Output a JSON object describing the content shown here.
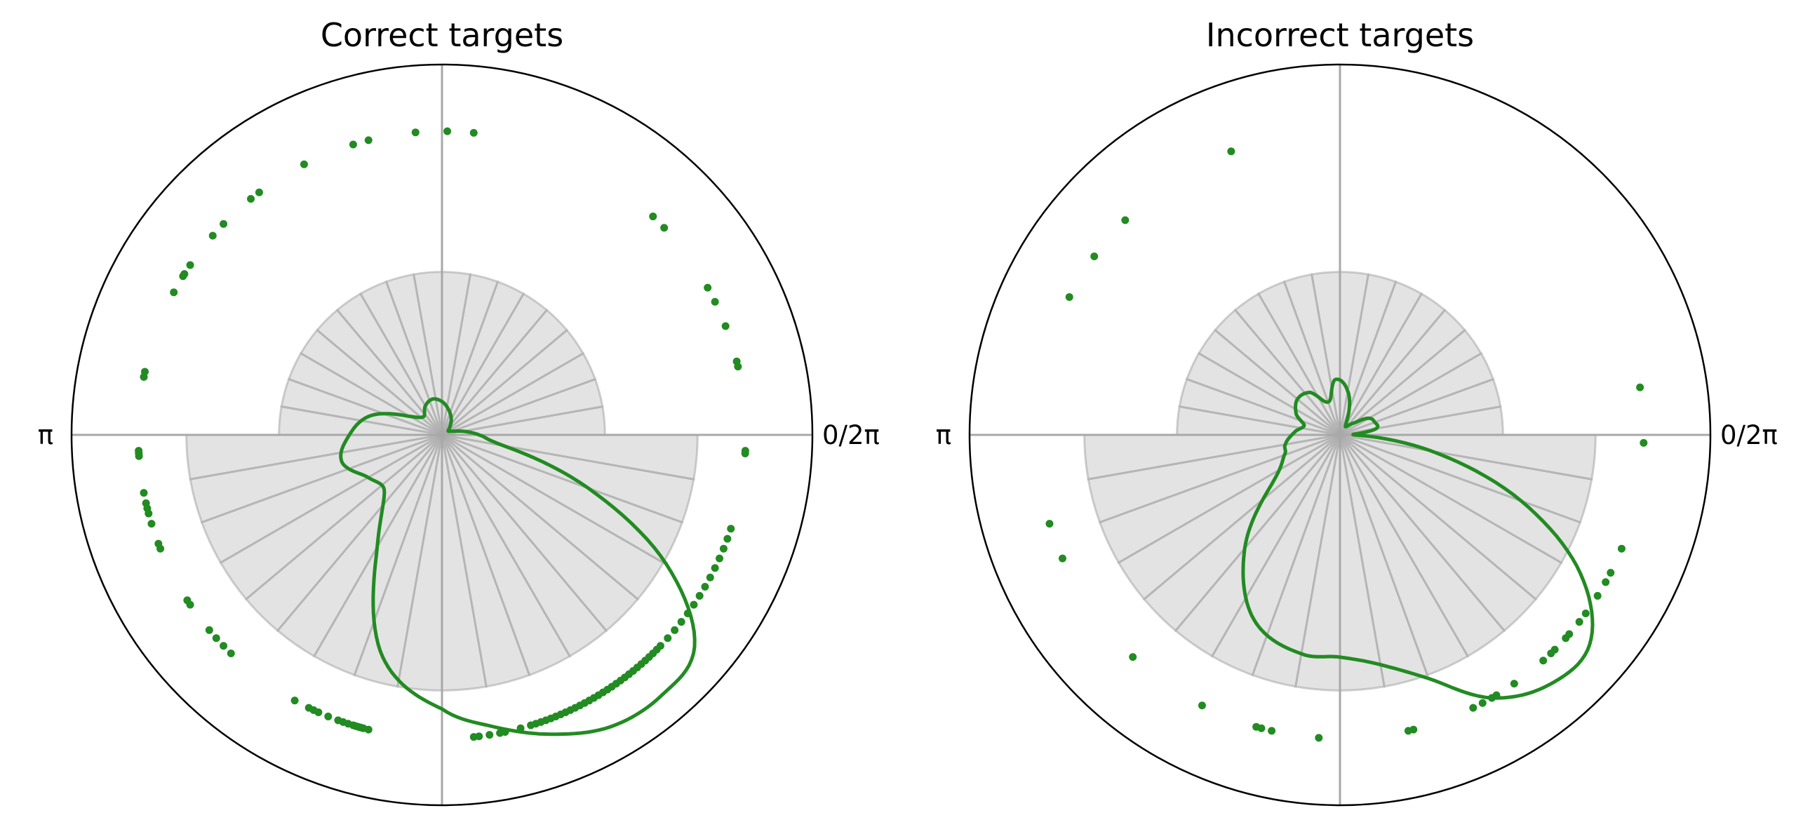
{
  "chart_data": [
    {
      "type": "polar",
      "title": "Correct targets",
      "tick_labels": {
        "zero": "0/2π",
        "pi": "π"
      },
      "histogram": {
        "bins": 36,
        "upper_half_value": 0.44,
        "lower_half_value": 0.69,
        "rmax": 1.0
      },
      "scatter": {
        "radius": 0.82,
        "angles_deg": [
          -3,
          -3.5,
          13,
          14,
          21,
          26,
          29,
          43,
          46,
          84,
          89,
          95,
          104,
          107,
          117,
          127,
          129,
          136,
          139,
          146,
          148,
          148.5,
          152,
          168,
          169,
          183,
          183.5,
          184,
          191,
          193,
          194,
          195,
          197,
          201,
          202,
          213,
          214,
          220,
          222,
          224,
          226,
          241,
          244,
          245,
          246,
          248,
          250,
          251,
          252,
          253,
          253.5,
          254,
          254.5,
          255,
          256,
          276,
          277,
          279,
          281,
          282,
          285,
          287,
          288,
          289,
          290,
          291,
          292,
          293,
          294,
          295,
          296,
          297,
          298,
          299,
          300,
          301,
          302,
          303,
          304,
          305,
          306,
          307,
          308,
          309,
          310,
          311,
          312,
          313,
          314,
          315,
          316,
          318,
          320,
          322,
          324,
          326,
          328,
          330,
          332,
          334,
          336,
          338,
          340,
          342
        ]
      },
      "kde_curve": {
        "color": "#228b22",
        "angles_deg": [
          0,
          15,
          30,
          45,
          60,
          75,
          90,
          105,
          120,
          135,
          150,
          165,
          180,
          195,
          210,
          225,
          240,
          255,
          270,
          280,
          290,
          300,
          310,
          320,
          330,
          340,
          350,
          360
        ],
        "values": [
          0.1,
          0.04,
          0.02,
          0.03,
          0.05,
          0.07,
          0.09,
          0.1,
          0.09,
          0.07,
          0.1,
          0.2,
          0.25,
          0.28,
          0.23,
          0.22,
          0.35,
          0.62,
          0.74,
          0.8,
          0.86,
          0.91,
          0.92,
          0.89,
          0.7,
          0.42,
          0.17,
          0.1
        ]
      }
    },
    {
      "type": "polar",
      "title": "Incorrect targets",
      "tick_labels": {
        "zero": "0/2π",
        "pi": "π"
      },
      "histogram": {
        "bins": 36,
        "upper_half_value": 0.44,
        "lower_half_value": 0.69,
        "rmax": 1.0
      },
      "scatter": {
        "radius": 0.82,
        "angles_deg": [
          -1.5,
          9,
          111,
          135,
          144,
          153,
          197,
          204,
          227,
          243,
          254,
          255,
          257,
          266,
          283,
          284,
          296,
          298,
          300,
          301,
          305,
          312,
          314,
          315,
          318,
          319,
          322,
          324,
          328,
          331,
          333,
          338
        ]
      },
      "kde_curve": {
        "color": "#228b22",
        "angles_deg": [
          0,
          10,
          20,
          30,
          40,
          60,
          80,
          95,
          105,
          115,
          125,
          140,
          155,
          165,
          175,
          190,
          200,
          215,
          230,
          245,
          260,
          270,
          280,
          290,
          300,
          310,
          320,
          330,
          340,
          350,
          360
        ],
        "values": [
          0.04,
          0.1,
          0.1,
          0.09,
          0.05,
          0.03,
          0.12,
          0.15,
          0.1,
          0.1,
          0.14,
          0.15,
          0.13,
          0.1,
          0.12,
          0.15,
          0.16,
          0.22,
          0.4,
          0.55,
          0.6,
          0.6,
          0.63,
          0.7,
          0.82,
          0.88,
          0.88,
          0.75,
          0.52,
          0.25,
          0.04
        ]
      }
    }
  ]
}
